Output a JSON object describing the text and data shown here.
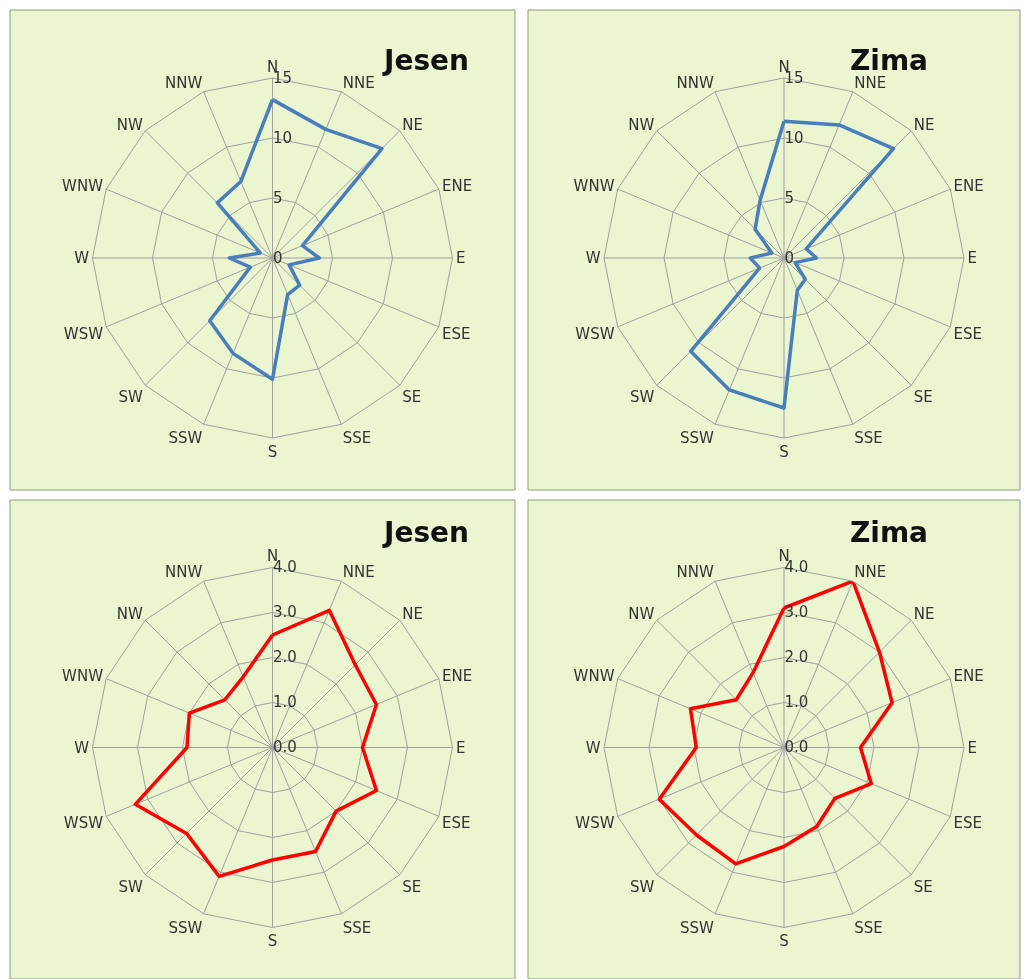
{
  "chart_data": [
    {
      "type": "radar",
      "title": "Jesen",
      "categories": [
        "N",
        "NNE",
        "NE",
        "ENE",
        "E",
        "ESE",
        "SE",
        "SSE",
        "S",
        "SSW",
        "SW",
        "WSW",
        "W",
        "WNW",
        "NW",
        "NNW"
      ],
      "series": [
        {
          "color": "#4a7ebb",
          "values": [
            13.2,
            11.6,
            12.9,
            2.7,
            3.9,
            1.5,
            3.2,
            3.3,
            10.1,
            8.6,
            7.4,
            2.0,
            3.6,
            1.1,
            6.5,
            6.9
          ]
        }
      ],
      "ylim": [
        0,
        15
      ],
      "yticks": [
        0,
        5,
        10,
        15
      ],
      "grid": true
    },
    {
      "type": "radar",
      "title": "Zima",
      "categories": [
        "N",
        "NNE",
        "NE",
        "ENE",
        "E",
        "ESE",
        "SE",
        "SSE",
        "S",
        "SSW",
        "SW",
        "WSW",
        "W",
        "WNW",
        "NW",
        "NNW"
      ],
      "series": [
        {
          "color": "#4a7ebb",
          "values": [
            11.4,
            12.0,
            12.9,
            2.0,
            2.7,
            1.0,
            2.5,
            2.9,
            12.5,
            11.9,
            11.0,
            2.2,
            2.8,
            1.1,
            3.4,
            5.2
          ]
        }
      ],
      "ylim": [
        0,
        15
      ],
      "yticks": [
        0,
        5,
        10,
        15
      ],
      "grid": true
    },
    {
      "type": "radar",
      "title": "Jesen",
      "categories": [
        "N",
        "NNE",
        "NE",
        "ENE",
        "E",
        "ESE",
        "SE",
        "SSE",
        "S",
        "SSW",
        "SW",
        "WSW",
        "W",
        "WNW",
        "NW",
        "NNW"
      ],
      "series": [
        {
          "color": "#ff0000",
          "values": [
            2.5,
            3.3,
            2.6,
            2.5,
            2.0,
            2.5,
            2.0,
            2.5,
            2.5,
            3.1,
            2.7,
            3.3,
            1.9,
            2.0,
            1.5,
            1.7
          ]
        }
      ],
      "ylim": [
        0,
        4
      ],
      "yticks": [
        {
          "value": 0,
          "label": "0.0"
        },
        {
          "value": 1,
          "label": "1.0"
        },
        {
          "value": 2,
          "label": "2.0"
        },
        {
          "value": 3,
          "label": "3.0"
        },
        {
          "value": 4,
          "label": "4.0"
        }
      ],
      "grid": true
    },
    {
      "type": "radar",
      "title": "Zima",
      "categories": [
        "N",
        "NNE",
        "NE",
        "ENE",
        "E",
        "ESE",
        "SE",
        "SSE",
        "S",
        "SSW",
        "SW",
        "WSW",
        "W",
        "WNW",
        "NW",
        "NNW"
      ],
      "series": [
        {
          "color": "#ff0000",
          "values": [
            3.1,
            4.0,
            3.0,
            2.6,
            1.7,
            2.1,
            1.6,
            1.9,
            2.2,
            2.8,
            2.75,
            3.0,
            1.95,
            2.25,
            1.5,
            1.8
          ]
        }
      ],
      "ylim": [
        0,
        4
      ],
      "yticks": [
        {
          "value": 0,
          "label": "0.0"
        },
        {
          "value": 1,
          "label": "1.0"
        },
        {
          "value": 2,
          "label": "2.0"
        },
        {
          "value": 3,
          "label": "3.0"
        },
        {
          "value": 4,
          "label": "4.0"
        }
      ],
      "grid": true
    }
  ]
}
